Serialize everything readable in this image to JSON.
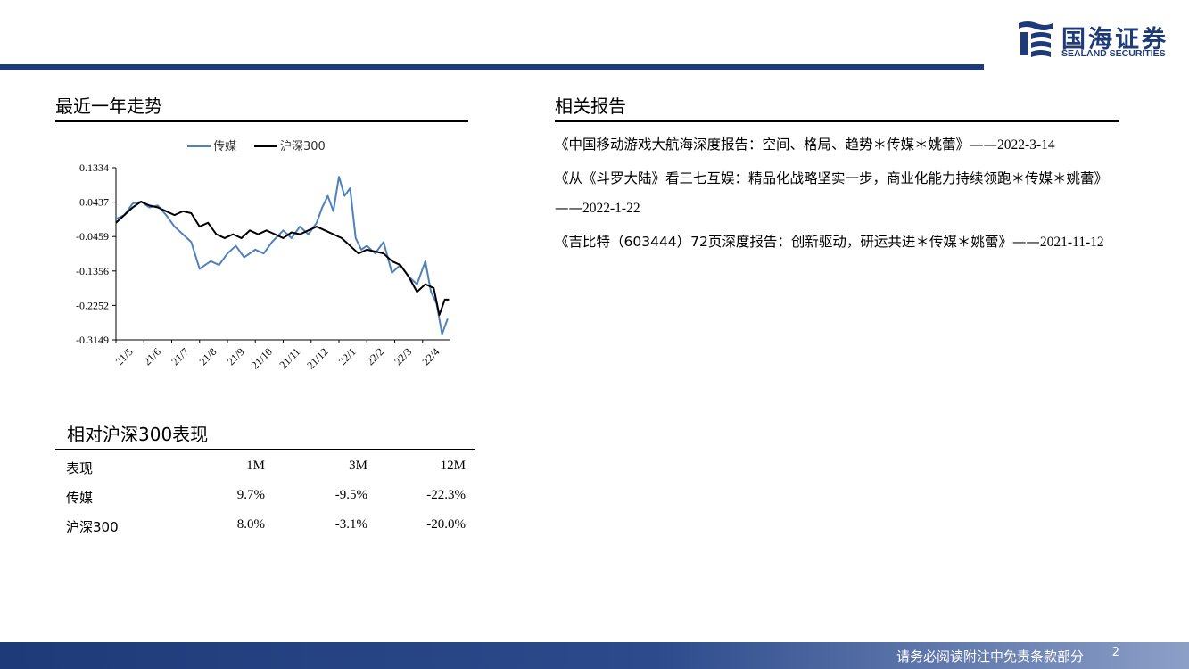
{
  "brand": {
    "cn": "国海证券",
    "en": "SEALAND SECURITIES"
  },
  "trend": {
    "title": "最近一年走势"
  },
  "chart_data": {
    "type": "line",
    "legend": [
      "传媒",
      "沪深300"
    ],
    "legend_placement": "top",
    "yticks": [
      "0.1334",
      "0.0437",
      "-0.0459",
      "-0.1356",
      "-0.2252",
      "-0.3149"
    ],
    "ylim": [
      -0.3149,
      0.1334
    ],
    "xticks": [
      "21/5",
      "21/6",
      "21/7",
      "21/8",
      "21/9",
      "21/10",
      "21/11",
      "21/12",
      "22/1",
      "22/2",
      "22/3",
      "22/4"
    ],
    "colors": {
      "media": "#4f81bd",
      "hs300": "#000000"
    },
    "series": [
      {
        "name": "传媒",
        "x": [
          0,
          0.3,
          0.6,
          0.9,
          1.2,
          1.5,
          1.8,
          2.1,
          2.4,
          2.7,
          3.0,
          3.2,
          3.4,
          3.7,
          4.0,
          4.3,
          4.6,
          5.0,
          5.3,
          5.6,
          6.0,
          6.3,
          6.6,
          6.9,
          7.2,
          7.4,
          7.6,
          7.8,
          8.0,
          8.2,
          8.4,
          8.6,
          8.8,
          9.0,
          9.3,
          9.6,
          9.9,
          10.2,
          10.5,
          10.8,
          11.1,
          11.3,
          11.5,
          11.7,
          11.9
        ],
        "values": [
          -0.0,
          0.01,
          0.04,
          0.045,
          0.03,
          0.035,
          0.01,
          -0.02,
          -0.04,
          -0.06,
          -0.13,
          -0.12,
          -0.11,
          -0.12,
          -0.09,
          -0.07,
          -0.1,
          -0.08,
          -0.09,
          -0.06,
          -0.03,
          -0.05,
          -0.02,
          -0.04,
          -0.01,
          0.03,
          0.06,
          0.02,
          0.11,
          0.06,
          0.08,
          -0.05,
          -0.08,
          -0.07,
          -0.09,
          -0.06,
          -0.14,
          -0.12,
          -0.15,
          -0.17,
          -0.11,
          -0.19,
          -0.22,
          -0.3,
          -0.26
        ]
      },
      {
        "name": "沪深300",
        "x": [
          0,
          0.3,
          0.6,
          0.9,
          1.2,
          1.5,
          1.8,
          2.1,
          2.4,
          2.7,
          3.0,
          3.3,
          3.6,
          3.9,
          4.2,
          4.5,
          4.8,
          5.1,
          5.4,
          5.7,
          6.0,
          6.3,
          6.6,
          6.9,
          7.2,
          7.5,
          7.8,
          8.1,
          8.4,
          8.7,
          9.0,
          9.3,
          9.6,
          9.9,
          10.2,
          10.5,
          10.8,
          11.1,
          11.4,
          11.6,
          11.8,
          11.95
        ],
        "values": [
          -0.01,
          0.01,
          0.03,
          0.045,
          0.035,
          0.03,
          0.02,
          0.01,
          0.02,
          0.015,
          -0.02,
          -0.01,
          -0.04,
          -0.05,
          -0.04,
          -0.05,
          -0.03,
          -0.04,
          -0.03,
          -0.04,
          -0.05,
          -0.035,
          -0.04,
          -0.03,
          -0.02,
          -0.03,
          -0.04,
          -0.05,
          -0.07,
          -0.09,
          -0.08,
          -0.085,
          -0.09,
          -0.11,
          -0.12,
          -0.15,
          -0.19,
          -0.17,
          -0.18,
          -0.25,
          -0.21,
          -0.21
        ]
      }
    ]
  },
  "performance": {
    "title": "相对沪深300表现",
    "header": [
      "表现",
      "1M",
      "3M",
      "12M"
    ],
    "rows": [
      [
        "传媒",
        "9.7%",
        "-9.5%",
        "-22.3%"
      ],
      [
        "沪深300",
        "8.0%",
        "-3.1%",
        "-20.0%"
      ]
    ]
  },
  "related": {
    "title": "相关报告",
    "items": [
      {
        "text": "《中国移动游戏大航海深度报告：空间、格局、趋势＊传媒＊姚蕾》——",
        "date": "2022-3-14"
      },
      {
        "text": "《从《斗罗大陆》看三七互娱：精品化战略坚实一步，商业化能力持续领跑＊传媒＊姚蕾》——",
        "date": "2022-1-22"
      },
      {
        "text": "《吉比特（603444）72页深度报告：创新驱动，研运共进＊传媒＊姚蕾》——",
        "date": "2021-11-12"
      }
    ]
  },
  "footer": {
    "disclaimer": "请务必阅读附注中免责条款部分",
    "page": "2"
  }
}
